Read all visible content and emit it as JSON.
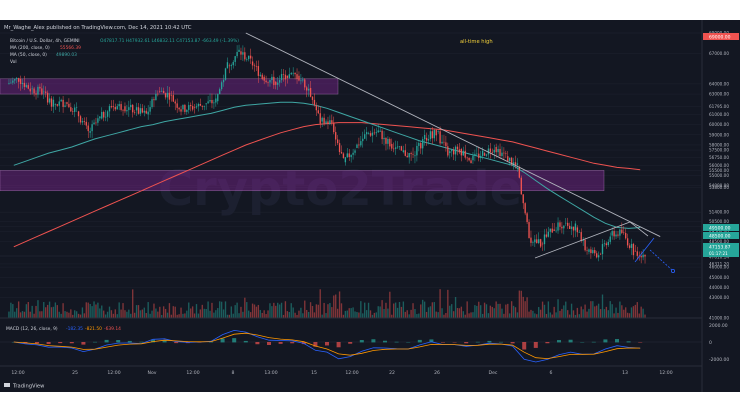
{
  "header": {
    "publisher": "Mr_Waghe_Alex published on TradingView.com, Dec 14, 2021 10:42 UTC"
  },
  "chart_header": {
    "symbol": "Bitcoin / U.S. Dollar, 4h, GEMINI",
    "ohlc": "O47817.71 H47932.61 L46832.11 C47153.87 -663.49 (-1.39%)",
    "ma_200": "MA (200, close, 0)",
    "ma_200_value": "55566.39",
    "ma_50": "MA (50, close, 0)",
    "ma_50_value": "49890.03",
    "vol": "Vol"
  },
  "annotations": {
    "all_time_high": "all-time high"
  },
  "price_axis": {
    "labels": [
      "69000.00",
      "67000.00",
      "64000.00",
      "63000.00",
      "61795.00",
      "61000.00",
      "60000.00",
      "59000.00",
      "58000.00",
      "57500.00",
      "56750.00",
      "56000.00",
      "55500.00",
      "55000.00",
      "54000.00",
      "53800.00",
      "51400.00",
      "50500.00",
      "50000.00",
      "49500.00",
      "48500.00",
      "47153.87",
      "47016.14",
      "46311.20",
      "46000.00",
      "45000.00",
      "44000.00",
      "43000.00",
      "41000.00"
    ],
    "last_price": "47153.87",
    "countdown": "01:17:21",
    "top_badge": "69000.00",
    "green_badge_1": "49500.00",
    "green_badge_2": "48500.00"
  },
  "macd": {
    "label": "MACD (12, 26, close, 9)",
    "v1": "-182.35",
    "v2": "-821.50",
    "v3": "-639.14",
    "axis_top": "2000.00",
    "axis_mid": "0",
    "axis_bot": "-2000.00"
  },
  "time_axis": {
    "labels": [
      "12:00",
      "25",
      "12:00",
      "Nov",
      "12:00",
      "8",
      "13:00",
      "15",
      "12:00",
      "22",
      "26",
      "Dec",
      "6",
      "13",
      "12:00"
    ]
  },
  "footer": {
    "brand": "TradingView"
  },
  "chart_data": {
    "type": "candlestick",
    "x": [
      "Oct 21",
      "Oct 22",
      "Oct 23",
      "Oct 24",
      "Oct 25",
      "Oct 26",
      "Oct 27",
      "Oct 28",
      "Oct 29",
      "Oct 30",
      "Oct 31",
      "Nov 1",
      "Nov 2",
      "Nov 3",
      "Nov 4",
      "Nov 5",
      "Nov 6",
      "Nov 7",
      "Nov 8",
      "Nov 9",
      "Nov 10",
      "Nov 11",
      "Nov 12",
      "Nov 13",
      "Nov 14",
      "Nov 15",
      "Nov 16",
      "Nov 17",
      "Nov 18",
      "Nov 19",
      "Nov 20",
      "Nov 21",
      "Nov 22",
      "Nov 23",
      "Nov 24",
      "Nov 25",
      "Nov 26",
      "Nov 27",
      "Nov 28",
      "Nov 29",
      "Nov 30",
      "Dec 1",
      "Dec 2",
      "Dec 3",
      "Dec 4",
      "Dec 5",
      "Dec 6",
      "Dec 7",
      "Dec 8",
      "Dec 9",
      "Dec 10",
      "Dec 11",
      "Dec 12",
      "Dec 13",
      "Dec 14"
    ],
    "close": [
      64500,
      63500,
      63200,
      62000,
      62200,
      61300,
      59200,
      60600,
      61800,
      61800,
      61400,
      61000,
      63300,
      62900,
      61500,
      61700,
      62000,
      62300,
      65800,
      67200,
      66200,
      64700,
      64200,
      64800,
      64800,
      63600,
      60300,
      60200,
      56300,
      57700,
      59100,
      59300,
      58100,
      57300,
      56900,
      58700,
      59300,
      57200,
      57600,
      56500,
      57200,
      57800,
      56900,
      55800,
      48900,
      48300,
      49700,
      50300,
      49900,
      47500,
      47300,
      49100,
      49400,
      47600,
      47150
    ],
    "ylim": [
      41000,
      69000
    ],
    "ma_50": [
      56000,
      56400,
      56800,
      57200,
      57500,
      57800,
      58200,
      58600,
      58900,
      59200,
      59500,
      59800,
      60000,
      60300,
      60500,
      60700,
      60900,
      61100,
      61400,
      61700,
      61900,
      62000,
      62100,
      62200,
      62200,
      62100,
      61900,
      61600,
      61200,
      60800,
      60400,
      60000,
      59600,
      59200,
      58800,
      58400,
      58100,
      57800,
      57500,
      57200,
      56900,
      56600,
      56300,
      56000,
      55300,
      54500,
      53700,
      53000,
      52300,
      51600,
      50900,
      50300,
      49900,
      49800,
      49890
    ],
    "ma_200": [
      48000,
      48500,
      49000,
      49500,
      50000,
      50500,
      51000,
      51500,
      52000,
      52500,
      53000,
      53500,
      54000,
      54500,
      55000,
      55500,
      56000,
      56500,
      57000,
      57500,
      58000,
      58400,
      58800,
      59200,
      59500,
      59800,
      60000,
      60100,
      60200,
      60200,
      60200,
      60100,
      60000,
      59900,
      59800,
      59700,
      59600,
      59500,
      59300,
      59100,
      58900,
      58700,
      58500,
      58300,
      58000,
      57700,
      57400,
      57100,
      56800,
      56500,
      56200,
      56000,
      55800,
      55700,
      55566
    ],
    "support_zones": [
      [
        63000,
        64500
      ],
      [
        53500,
        55500
      ]
    ],
    "trendline": {
      "from": {
        "x": "Nov 10",
        "y": 69000
      },
      "to": {
        "x": "Dec 14",
        "y": 49000
      }
    }
  }
}
